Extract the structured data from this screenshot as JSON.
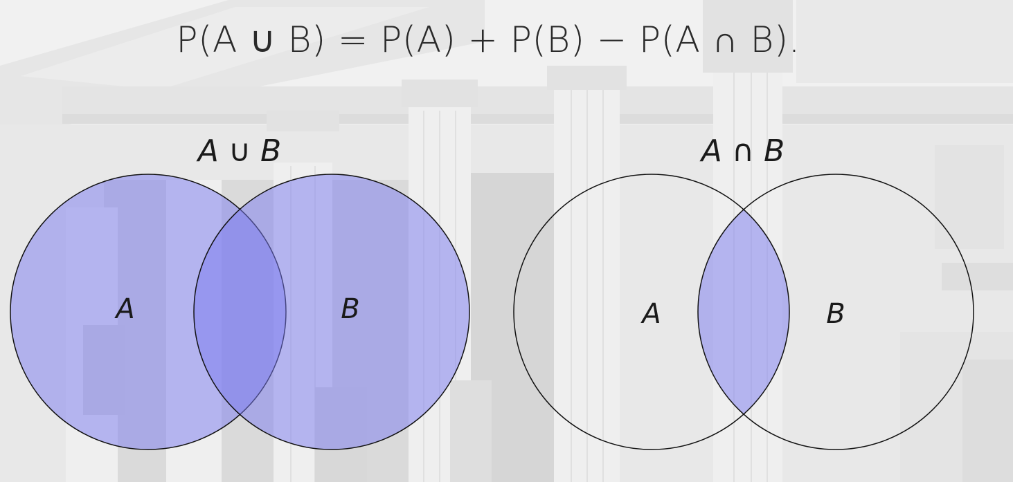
{
  "formula": "P(A ∪ B) = P(A) + P(B) − P(A ∩ B).",
  "union_diagram": {
    "title": "A ∪ B",
    "set_a_label": "A",
    "set_b_label": "B",
    "fill_color": "#7a7af0",
    "overlap_color": "#5b5bef"
  },
  "intersection_diagram": {
    "title": "A ∩ B",
    "set_a_label": "A",
    "set_b_label": "B",
    "fill_color": "#7a7af0"
  }
}
